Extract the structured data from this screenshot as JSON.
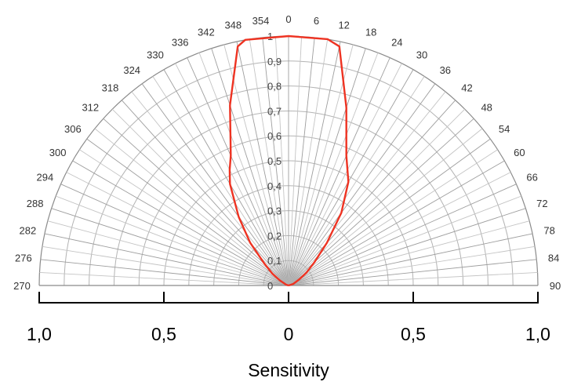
{
  "chart_data": {
    "type": "polar",
    "subtype": "semicircular directional sensitivity diagram",
    "xlabel": "Sensitivity",
    "angle_tick_labels": [
      "270",
      "276",
      "282",
      "288",
      "294",
      "300",
      "306",
      "312",
      "318",
      "324",
      "330",
      "336",
      "342",
      "348",
      "354",
      "0",
      "6",
      "12",
      "18",
      "24",
      "30",
      "36",
      "42",
      "48",
      "54",
      "60",
      "66",
      "72",
      "78",
      "84",
      "90"
    ],
    "radial_tick_labels": [
      "0",
      "0,1",
      "0,2",
      "0,3",
      "0,4",
      "0,5",
      "0,6",
      "0,7",
      "0,8",
      "0,9",
      "1"
    ],
    "radial_range": [
      0,
      1
    ],
    "angle_range_deg": [
      -90,
      90
    ],
    "grid": true,
    "scale_bar": {
      "tick_labels": [
        "1,0",
        "0,5",
        "0",
        "0,5",
        "1,0"
      ],
      "values": [
        -1.0,
        -0.5,
        0,
        0.5,
        1.0
      ]
    },
    "series": [
      {
        "color": "#ee3322",
        "points": [
          {
            "angle": -90,
            "r": 0.0
          },
          {
            "angle": -72,
            "r": 0.01
          },
          {
            "angle": -60,
            "r": 0.04
          },
          {
            "angle": -54,
            "r": 0.08
          },
          {
            "angle": -48,
            "r": 0.13
          },
          {
            "angle": -42,
            "r": 0.23
          },
          {
            "angle": -36,
            "r": 0.34
          },
          {
            "angle": -30,
            "r": 0.47
          },
          {
            "angle": -27,
            "r": 0.52
          },
          {
            "angle": -24,
            "r": 0.57
          },
          {
            "angle": -18,
            "r": 0.76
          },
          {
            "angle": -12,
            "r": 0.98
          },
          {
            "angle": -10,
            "r": 1.0
          },
          {
            "angle": 0,
            "r": 1.0
          },
          {
            "angle": 9,
            "r": 1.0
          },
          {
            "angle": 12,
            "r": 0.98
          },
          {
            "angle": 18,
            "r": 0.75
          },
          {
            "angle": 24,
            "r": 0.57
          },
          {
            "angle": 30,
            "r": 0.48
          },
          {
            "angle": 36,
            "r": 0.36
          },
          {
            "angle": 42,
            "r": 0.23
          },
          {
            "angle": 48,
            "r": 0.14
          },
          {
            "angle": 54,
            "r": 0.09
          },
          {
            "angle": 60,
            "r": 0.05
          },
          {
            "angle": 72,
            "r": 0.02
          },
          {
            "angle": 90,
            "r": 0.0
          }
        ]
      }
    ]
  }
}
